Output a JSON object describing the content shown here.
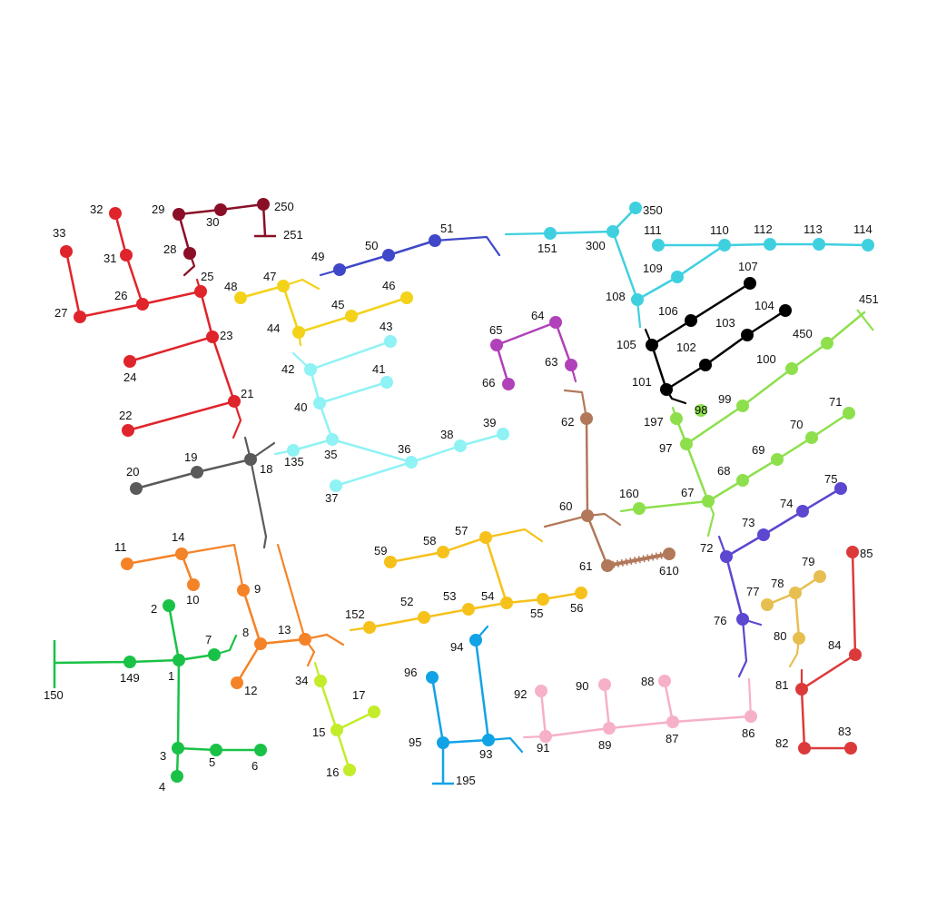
{
  "diagram": {
    "type": "network-feeder-graph",
    "groups": [
      {
        "id": "g-red",
        "color": "#e0242b"
      },
      {
        "id": "g-maroon",
        "color": "#8a0f26"
      },
      {
        "id": "g-blue",
        "color": "#3f48c8"
      },
      {
        "id": "g-cyan",
        "color": "#3fd0e0"
      },
      {
        "id": "g-yellow",
        "color": "#f3d219"
      },
      {
        "id": "g-lightcyan",
        "color": "#8ff2f4"
      },
      {
        "id": "g-purple",
        "color": "#b041b8"
      },
      {
        "id": "g-black",
        "color": "#000000"
      },
      {
        "id": "g-grey",
        "color": "#5a5a5a"
      },
      {
        "id": "g-orange",
        "color": "#f48328"
      },
      {
        "id": "g-green",
        "color": "#19c247"
      },
      {
        "id": "g-lime",
        "color": "#c3ec2a"
      },
      {
        "id": "g-gold",
        "color": "#f6c11a"
      },
      {
        "id": "g-brown",
        "color": "#b2785a"
      },
      {
        "id": "g-lightgreen",
        "color": "#8de04c"
      },
      {
        "id": "g-violet",
        "color": "#5b47d0"
      },
      {
        "id": "g-tan",
        "color": "#e6bf50"
      },
      {
        "id": "g-darkred",
        "color": "#dc3a3a"
      },
      {
        "id": "g-skyblue",
        "color": "#12a2e6"
      },
      {
        "id": "g-pink",
        "color": "#f6b0c8"
      }
    ],
    "nodes": [
      {
        "id": "1",
        "label": "1",
        "group": "g-green"
      },
      {
        "id": "2",
        "label": "2",
        "group": "g-green"
      },
      {
        "id": "3",
        "label": "3",
        "group": "g-green"
      },
      {
        "id": "4",
        "label": "4",
        "group": "g-green"
      },
      {
        "id": "5",
        "label": "5",
        "group": "g-green"
      },
      {
        "id": "6",
        "label": "6",
        "group": "g-green"
      },
      {
        "id": "7",
        "label": "7",
        "group": "g-green"
      },
      {
        "id": "149",
        "label": "149",
        "group": "g-green"
      },
      {
        "id": "150",
        "label": "150",
        "group": "g-green"
      },
      {
        "id": "8",
        "label": "8",
        "group": "g-orange"
      },
      {
        "id": "9",
        "label": "9",
        "group": "g-orange"
      },
      {
        "id": "10",
        "label": "10",
        "group": "g-orange"
      },
      {
        "id": "11",
        "label": "11",
        "group": "g-orange"
      },
      {
        "id": "12",
        "label": "12",
        "group": "g-orange"
      },
      {
        "id": "13",
        "label": "13",
        "group": "g-orange"
      },
      {
        "id": "14",
        "label": "14",
        "group": "g-orange"
      },
      {
        "id": "15",
        "label": "15",
        "group": "g-lime"
      },
      {
        "id": "16",
        "label": "16",
        "group": "g-lime"
      },
      {
        "id": "17",
        "label": "17",
        "group": "g-lime"
      },
      {
        "id": "34",
        "label": "34",
        "group": "g-lime"
      },
      {
        "id": "18",
        "label": "18",
        "group": "g-grey"
      },
      {
        "id": "19",
        "label": "19",
        "group": "g-grey"
      },
      {
        "id": "20",
        "label": "20",
        "group": "g-grey"
      },
      {
        "id": "21",
        "label": "21",
        "group": "g-red"
      },
      {
        "id": "22",
        "label": "22",
        "group": "g-red"
      },
      {
        "id": "23",
        "label": "23",
        "group": "g-red"
      },
      {
        "id": "24",
        "label": "24",
        "group": "g-red"
      },
      {
        "id": "25",
        "label": "25",
        "group": "g-red"
      },
      {
        "id": "26",
        "label": "26",
        "group": "g-red"
      },
      {
        "id": "27",
        "label": "27",
        "group": "g-red"
      },
      {
        "id": "31",
        "label": "31",
        "group": "g-red"
      },
      {
        "id": "32",
        "label": "32",
        "group": "g-red"
      },
      {
        "id": "33",
        "label": "33",
        "group": "g-red"
      },
      {
        "id": "28",
        "label": "28",
        "group": "g-maroon"
      },
      {
        "id": "29",
        "label": "29",
        "group": "g-maroon"
      },
      {
        "id": "30",
        "label": "30",
        "group": "g-maroon"
      },
      {
        "id": "250",
        "label": "250",
        "group": "g-maroon"
      },
      {
        "id": "251",
        "label": "251",
        "group": "g-maroon"
      },
      {
        "id": "35",
        "label": "35",
        "group": "g-lightcyan"
      },
      {
        "id": "36",
        "label": "36",
        "group": "g-lightcyan"
      },
      {
        "id": "37",
        "label": "37",
        "group": "g-lightcyan"
      },
      {
        "id": "38",
        "label": "38",
        "group": "g-lightcyan"
      },
      {
        "id": "39",
        "label": "39",
        "group": "g-lightcyan"
      },
      {
        "id": "40",
        "label": "40",
        "group": "g-lightcyan"
      },
      {
        "id": "41",
        "label": "41",
        "group": "g-lightcyan"
      },
      {
        "id": "42",
        "label": "42",
        "group": "g-lightcyan"
      },
      {
        "id": "43",
        "label": "43",
        "group": "g-lightcyan"
      },
      {
        "id": "135",
        "label": "135",
        "group": "g-lightcyan"
      },
      {
        "id": "44",
        "label": "44",
        "group": "g-yellow"
      },
      {
        "id": "45",
        "label": "45",
        "group": "g-yellow"
      },
      {
        "id": "46",
        "label": "46",
        "group": "g-yellow"
      },
      {
        "id": "47",
        "label": "47",
        "group": "g-yellow"
      },
      {
        "id": "48",
        "label": "48",
        "group": "g-yellow"
      },
      {
        "id": "49",
        "label": "49",
        "group": "g-blue"
      },
      {
        "id": "50",
        "label": "50",
        "group": "g-blue"
      },
      {
        "id": "51",
        "label": "51",
        "group": "g-blue"
      },
      {
        "id": "52",
        "label": "52",
        "group": "g-gold"
      },
      {
        "id": "53",
        "label": "53",
        "group": "g-gold"
      },
      {
        "id": "54",
        "label": "54",
        "group": "g-gold"
      },
      {
        "id": "55",
        "label": "55",
        "group": "g-gold"
      },
      {
        "id": "56",
        "label": "56",
        "group": "g-gold"
      },
      {
        "id": "57",
        "label": "57",
        "group": "g-gold"
      },
      {
        "id": "58",
        "label": "58",
        "group": "g-gold"
      },
      {
        "id": "59",
        "label": "59",
        "group": "g-gold"
      },
      {
        "id": "152",
        "label": "152",
        "group": "g-gold"
      },
      {
        "id": "60",
        "label": "60",
        "group": "g-brown"
      },
      {
        "id": "61",
        "label": "61",
        "group": "g-brown"
      },
      {
        "id": "62",
        "label": "62",
        "group": "g-brown"
      },
      {
        "id": "610",
        "label": "610",
        "group": "g-brown"
      },
      {
        "id": "63",
        "label": "63",
        "group": "g-purple"
      },
      {
        "id": "64",
        "label": "64",
        "group": "g-purple"
      },
      {
        "id": "65",
        "label": "65",
        "group": "g-purple"
      },
      {
        "id": "66",
        "label": "66",
        "group": "g-purple"
      },
      {
        "id": "67",
        "label": "67",
        "group": "g-lightgreen"
      },
      {
        "id": "68",
        "label": "68",
        "group": "g-lightgreen"
      },
      {
        "id": "69",
        "label": "69",
        "group": "g-lightgreen"
      },
      {
        "id": "70",
        "label": "70",
        "group": "g-lightgreen"
      },
      {
        "id": "71",
        "label": "71",
        "group": "g-lightgreen"
      },
      {
        "id": "97",
        "label": "97",
        "group": "g-lightgreen"
      },
      {
        "id": "98",
        "label": "98",
        "group": "g-lightgreen"
      },
      {
        "id": "99",
        "label": "99",
        "group": "g-lightgreen"
      },
      {
        "id": "100",
        "label": "100",
        "group": "g-lightgreen"
      },
      {
        "id": "450",
        "label": "450",
        "group": "g-lightgreen"
      },
      {
        "id": "451",
        "label": "451",
        "group": "g-lightgreen"
      },
      {
        "id": "160",
        "label": "160",
        "group": "g-lightgreen"
      },
      {
        "id": "197",
        "label": "197",
        "group": "g-lightgreen"
      },
      {
        "id": "72",
        "label": "72",
        "group": "g-violet"
      },
      {
        "id": "73",
        "label": "73",
        "group": "g-violet"
      },
      {
        "id": "74",
        "label": "74",
        "group": "g-violet"
      },
      {
        "id": "75",
        "label": "75",
        "group": "g-violet"
      },
      {
        "id": "76",
        "label": "76",
        "group": "g-violet"
      },
      {
        "id": "77",
        "label": "77",
        "group": "g-tan"
      },
      {
        "id": "78",
        "label": "78",
        "group": "g-tan"
      },
      {
        "id": "79",
        "label": "79",
        "group": "g-tan"
      },
      {
        "id": "80",
        "label": "80",
        "group": "g-tan"
      },
      {
        "id": "81",
        "label": "81",
        "group": "g-darkred"
      },
      {
        "id": "82",
        "label": "82",
        "group": "g-darkred"
      },
      {
        "id": "83",
        "label": "83",
        "group": "g-darkred"
      },
      {
        "id": "84",
        "label": "84",
        "group": "g-darkred"
      },
      {
        "id": "85",
        "label": "85",
        "group": "g-darkred"
      },
      {
        "id": "86",
        "label": "86",
        "group": "g-pink"
      },
      {
        "id": "87",
        "label": "87",
        "group": "g-pink"
      },
      {
        "id": "88",
        "label": "88",
        "group": "g-pink"
      },
      {
        "id": "89",
        "label": "89",
        "group": "g-pink"
      },
      {
        "id": "90",
        "label": "90",
        "group": "g-pink"
      },
      {
        "id": "91",
        "label": "91",
        "group": "g-pink"
      },
      {
        "id": "92",
        "label": "92",
        "group": "g-pink"
      },
      {
        "id": "93",
        "label": "93",
        "group": "g-skyblue"
      },
      {
        "id": "94",
        "label": "94",
        "group": "g-skyblue"
      },
      {
        "id": "95",
        "label": "95",
        "group": "g-skyblue"
      },
      {
        "id": "96",
        "label": "96",
        "group": "g-skyblue"
      },
      {
        "id": "195",
        "label": "195",
        "group": "g-skyblue"
      },
      {
        "id": "101",
        "label": "101",
        "group": "g-black"
      },
      {
        "id": "102",
        "label": "102",
        "group": "g-black"
      },
      {
        "id": "103",
        "label": "103",
        "group": "g-black"
      },
      {
        "id": "104",
        "label": "104",
        "group": "g-black"
      },
      {
        "id": "105",
        "label": "105",
        "group": "g-black"
      },
      {
        "id": "106",
        "label": "106",
        "group": "g-black"
      },
      {
        "id": "107",
        "label": "107",
        "group": "g-black"
      },
      {
        "id": "108",
        "label": "108",
        "group": "g-cyan"
      },
      {
        "id": "109",
        "label": "109",
        "group": "g-cyan"
      },
      {
        "id": "110",
        "label": "110",
        "group": "g-cyan"
      },
      {
        "id": "111",
        "label": "111",
        "group": "g-cyan"
      },
      {
        "id": "112",
        "label": "112",
        "group": "g-cyan"
      },
      {
        "id": "113",
        "label": "113",
        "group": "g-cyan"
      },
      {
        "id": "114",
        "label": "114",
        "group": "g-cyan"
      },
      {
        "id": "151",
        "label": "151",
        "group": "g-cyan"
      },
      {
        "id": "300",
        "label": "300",
        "group": "g-cyan"
      },
      {
        "id": "350",
        "label": "350",
        "group": "g-cyan"
      }
    ],
    "edges": [
      [
        "150",
        "149"
      ],
      [
        "149",
        "1"
      ],
      [
        "1",
        "2"
      ],
      [
        "1",
        "7"
      ],
      [
        "1",
        "3"
      ],
      [
        "3",
        "4"
      ],
      [
        "3",
        "5"
      ],
      [
        "5",
        "6"
      ],
      [
        "8",
        "12"
      ],
      [
        "8",
        "9"
      ],
      [
        "8",
        "13"
      ],
      [
        "14",
        "11"
      ],
      [
        "14",
        "10"
      ],
      [
        "34",
        "15"
      ],
      [
        "15",
        "17"
      ],
      [
        "15",
        "16"
      ],
      [
        "18",
        "19"
      ],
      [
        "19",
        "20"
      ],
      [
        "21",
        "22"
      ],
      [
        "21",
        "23"
      ],
      [
        "23",
        "24"
      ],
      [
        "23",
        "25"
      ],
      [
        "25",
        "26"
      ],
      [
        "26",
        "27"
      ],
      [
        "27",
        "33"
      ],
      [
        "26",
        "31"
      ],
      [
        "31",
        "32"
      ],
      [
        "28",
        "29"
      ],
      [
        "29",
        "30"
      ],
      [
        "30",
        "250"
      ],
      [
        "250",
        "251"
      ],
      [
        "135",
        "35"
      ],
      [
        "35",
        "40"
      ],
      [
        "40",
        "41"
      ],
      [
        "40",
        "42"
      ],
      [
        "42",
        "43"
      ],
      [
        "35",
        "36"
      ],
      [
        "36",
        "37"
      ],
      [
        "36",
        "38"
      ],
      [
        "38",
        "39"
      ],
      [
        "44",
        "47"
      ],
      [
        "47",
        "48"
      ],
      [
        "44",
        "45"
      ],
      [
        "45",
        "46"
      ],
      [
        "49",
        "50"
      ],
      [
        "50",
        "51"
      ],
      [
        "152",
        "52"
      ],
      [
        "52",
        "53"
      ],
      [
        "53",
        "54"
      ],
      [
        "54",
        "55"
      ],
      [
        "55",
        "56"
      ],
      [
        "54",
        "57"
      ],
      [
        "57",
        "58"
      ],
      [
        "58",
        "59"
      ],
      [
        "62",
        "60"
      ],
      [
        "60",
        "61"
      ],
      [
        "61",
        "610"
      ],
      [
        "65",
        "66"
      ],
      [
        "65",
        "64"
      ],
      [
        "64",
        "63"
      ],
      [
        "160",
        "67"
      ],
      [
        "67",
        "97"
      ],
      [
        "67",
        "68"
      ],
      [
        "68",
        "69"
      ],
      [
        "69",
        "70"
      ],
      [
        "70",
        "71"
      ],
      [
        "97",
        "197"
      ],
      [
        "97",
        "99"
      ],
      [
        "99",
        "100"
      ],
      [
        "100",
        "450"
      ],
      [
        "450",
        "451"
      ],
      [
        "72",
        "73"
      ],
      [
        "73",
        "74"
      ],
      [
        "74",
        "75"
      ],
      [
        "72",
        "76"
      ],
      [
        "77",
        "78"
      ],
      [
        "78",
        "79"
      ],
      [
        "78",
        "80"
      ],
      [
        "81",
        "82"
      ],
      [
        "82",
        "83"
      ],
      [
        "81",
        "84"
      ],
      [
        "84",
        "85"
      ],
      [
        "91",
        "92"
      ],
      [
        "91",
        "89"
      ],
      [
        "89",
        "90"
      ],
      [
        "89",
        "87"
      ],
      [
        "87",
        "88"
      ],
      [
        "87",
        "86"
      ],
      [
        "94",
        "93"
      ],
      [
        "93",
        "95"
      ],
      [
        "95",
        "96"
      ],
      [
        "95",
        "195"
      ],
      [
        "101",
        "105"
      ],
      [
        "105",
        "106"
      ],
      [
        "106",
        "107"
      ],
      [
        "101",
        "102"
      ],
      [
        "102",
        "103"
      ],
      [
        "103",
        "104"
      ],
      [
        "151",
        "300"
      ],
      [
        "300",
        "350"
      ],
      [
        "300",
        "108"
      ],
      [
        "108",
        "109"
      ],
      [
        "109",
        "110"
      ],
      [
        "110",
        "111"
      ],
      [
        "110",
        "112"
      ],
      [
        "112",
        "113"
      ],
      [
        "113",
        "114"
      ]
    ]
  }
}
